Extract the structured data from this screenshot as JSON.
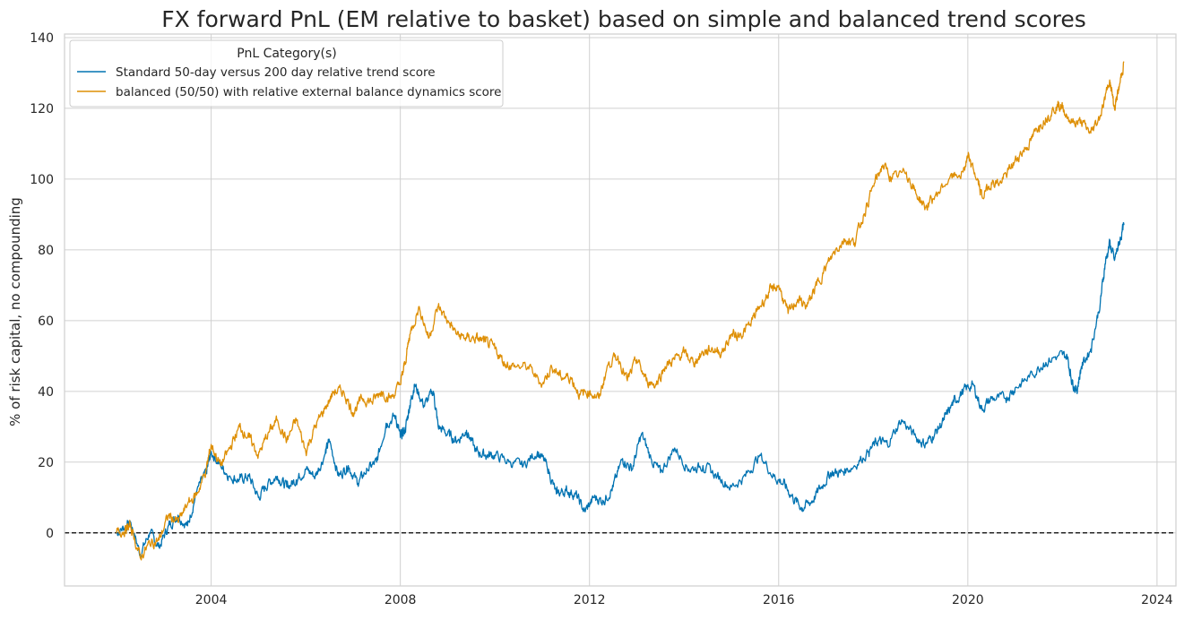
{
  "chart_data": {
    "type": "line",
    "title": "FX forward PnL (EM relative to basket) based on simple and balanced trend scores",
    "xlabel": "",
    "ylabel": "% of risk capital, no compounding",
    "xlim": [
      2000.9,
      2024.4
    ],
    "ylim": [
      -15,
      141
    ],
    "x_ticks": [
      2004,
      2008,
      2012,
      2016,
      2020,
      2024
    ],
    "x_tick_labels": [
      "2004",
      "2008",
      "2012",
      "2016",
      "2020",
      "2024"
    ],
    "y_ticks": [
      0,
      20,
      40,
      60,
      80,
      100,
      120,
      140
    ],
    "y_tick_labels": [
      "0",
      "20",
      "40",
      "60",
      "80",
      "100",
      "120",
      "140"
    ],
    "grid": true,
    "reference_line": {
      "y": 0,
      "style": "dashed",
      "color": "#000000"
    },
    "legend": {
      "title": "PnL Category(s)",
      "placement": "top-left"
    },
    "series": [
      {
        "name": "Standard 50-day versus 200 day relative trend score",
        "color": "#0173b2",
        "points": [
          [
            2002.0,
            0
          ],
          [
            2002.2,
            2
          ],
          [
            2002.3,
            3
          ],
          [
            2002.5,
            -6
          ],
          [
            2002.7,
            0
          ],
          [
            2002.9,
            -4
          ],
          [
            2003.1,
            2
          ],
          [
            2003.3,
            5
          ],
          [
            2003.5,
            2
          ],
          [
            2003.7,
            12
          ],
          [
            2003.9,
            17
          ],
          [
            2004.0,
            23
          ],
          [
            2004.2,
            19
          ],
          [
            2004.4,
            16
          ],
          [
            2004.6,
            15
          ],
          [
            2004.8,
            16
          ],
          [
            2005.0,
            10
          ],
          [
            2005.2,
            14
          ],
          [
            2005.4,
            16
          ],
          [
            2005.6,
            13
          ],
          [
            2005.8,
            15
          ],
          [
            2006.0,
            18
          ],
          [
            2006.2,
            16
          ],
          [
            2006.4,
            22
          ],
          [
            2006.5,
            26
          ],
          [
            2006.7,
            16
          ],
          [
            2006.9,
            19
          ],
          [
            2007.1,
            14
          ],
          [
            2007.3,
            18
          ],
          [
            2007.5,
            20
          ],
          [
            2007.7,
            31
          ],
          [
            2007.9,
            33
          ],
          [
            2008.0,
            27
          ],
          [
            2008.1,
            29
          ],
          [
            2008.2,
            36
          ],
          [
            2008.3,
            42
          ],
          [
            2008.5,
            36
          ],
          [
            2008.7,
            40
          ],
          [
            2008.8,
            30
          ],
          [
            2009.0,
            28
          ],
          [
            2009.2,
            26
          ],
          [
            2009.4,
            29
          ],
          [
            2009.6,
            23
          ],
          [
            2009.8,
            22
          ],
          [
            2010.0,
            22
          ],
          [
            2010.3,
            20
          ],
          [
            2010.6,
            19
          ],
          [
            2010.9,
            23
          ],
          [
            2011.1,
            19
          ],
          [
            2011.3,
            11
          ],
          [
            2011.5,
            12
          ],
          [
            2011.7,
            11
          ],
          [
            2011.9,
            6
          ],
          [
            2012.1,
            10
          ],
          [
            2012.3,
            9
          ],
          [
            2012.5,
            13
          ],
          [
            2012.7,
            21
          ],
          [
            2012.9,
            18
          ],
          [
            2013.1,
            28
          ],
          [
            2013.3,
            21
          ],
          [
            2013.5,
            17
          ],
          [
            2013.8,
            24
          ],
          [
            2014.1,
            18
          ],
          [
            2014.4,
            19
          ],
          [
            2014.7,
            16
          ],
          [
            2015.0,
            13
          ],
          [
            2015.3,
            16
          ],
          [
            2015.6,
            22
          ],
          [
            2015.9,
            16
          ],
          [
            2016.1,
            14
          ],
          [
            2016.3,
            10
          ],
          [
            2016.5,
            7
          ],
          [
            2016.7,
            9
          ],
          [
            2016.9,
            13
          ],
          [
            2017.1,
            17
          ],
          [
            2017.3,
            17
          ],
          [
            2017.6,
            19
          ],
          [
            2017.9,
            23
          ],
          [
            2018.1,
            26
          ],
          [
            2018.3,
            25
          ],
          [
            2018.6,
            32
          ],
          [
            2018.9,
            27
          ],
          [
            2019.1,
            25
          ],
          [
            2019.3,
            28
          ],
          [
            2019.5,
            32
          ],
          [
            2019.7,
            37
          ],
          [
            2019.9,
            40
          ],
          [
            2020.1,
            42
          ],
          [
            2020.3,
            35
          ],
          [
            2020.5,
            38
          ],
          [
            2020.8,
            38
          ],
          [
            2021.0,
            41
          ],
          [
            2021.3,
            44
          ],
          [
            2021.6,
            48
          ],
          [
            2021.9,
            50
          ],
          [
            2022.1,
            50
          ],
          [
            2022.2,
            43
          ],
          [
            2022.3,
            40
          ],
          [
            2022.4,
            47
          ],
          [
            2022.6,
            52
          ],
          [
            2022.8,
            65
          ],
          [
            2022.9,
            76
          ],
          [
            2023.0,
            82
          ],
          [
            2023.1,
            77
          ],
          [
            2023.2,
            82
          ],
          [
            2023.3,
            87
          ]
        ]
      },
      {
        "name": "balanced (50/50) with relative external balance dynamics score",
        "color": "#de8f05",
        "points": [
          [
            2002.0,
            0
          ],
          [
            2002.2,
            1
          ],
          [
            2002.3,
            2
          ],
          [
            2002.5,
            -7
          ],
          [
            2002.7,
            -3
          ],
          [
            2002.9,
            -2
          ],
          [
            2003.1,
            5
          ],
          [
            2003.3,
            3
          ],
          [
            2003.5,
            8
          ],
          [
            2003.7,
            11
          ],
          [
            2003.9,
            18
          ],
          [
            2004.0,
            25
          ],
          [
            2004.2,
            19
          ],
          [
            2004.4,
            24
          ],
          [
            2004.6,
            30
          ],
          [
            2004.8,
            27
          ],
          [
            2005.0,
            22
          ],
          [
            2005.2,
            28
          ],
          [
            2005.4,
            32
          ],
          [
            2005.6,
            26
          ],
          [
            2005.8,
            32
          ],
          [
            2006.0,
            23
          ],
          [
            2006.2,
            30
          ],
          [
            2006.4,
            35
          ],
          [
            2006.6,
            40
          ],
          [
            2006.8,
            40
          ],
          [
            2007.0,
            34
          ],
          [
            2007.2,
            38
          ],
          [
            2007.4,
            37
          ],
          [
            2007.6,
            40
          ],
          [
            2007.8,
            38
          ],
          [
            2008.0,
            42
          ],
          [
            2008.1,
            48
          ],
          [
            2008.2,
            56
          ],
          [
            2008.4,
            64
          ],
          [
            2008.6,
            55
          ],
          [
            2008.8,
            64
          ],
          [
            2009.0,
            60
          ],
          [
            2009.2,
            56
          ],
          [
            2009.4,
            55
          ],
          [
            2009.6,
            55
          ],
          [
            2009.8,
            54
          ],
          [
            2010.0,
            52
          ],
          [
            2010.2,
            48
          ],
          [
            2010.4,
            47
          ],
          [
            2010.7,
            47
          ],
          [
            2011.0,
            42
          ],
          [
            2011.2,
            47
          ],
          [
            2011.4,
            44
          ],
          [
            2011.6,
            44
          ],
          [
            2011.8,
            39
          ],
          [
            2012.0,
            40
          ],
          [
            2012.2,
            38
          ],
          [
            2012.4,
            48
          ],
          [
            2012.6,
            50
          ],
          [
            2012.8,
            43
          ],
          [
            2013.0,
            49
          ],
          [
            2013.2,
            43
          ],
          [
            2013.4,
            42
          ],
          [
            2013.6,
            47
          ],
          [
            2013.8,
            49
          ],
          [
            2014.0,
            51
          ],
          [
            2014.2,
            48
          ],
          [
            2014.4,
            51
          ],
          [
            2014.6,
            52
          ],
          [
            2014.8,
            51
          ],
          [
            2015.0,
            56
          ],
          [
            2015.2,
            56
          ],
          [
            2015.4,
            59
          ],
          [
            2015.6,
            64
          ],
          [
            2015.8,
            68
          ],
          [
            2016.0,
            70
          ],
          [
            2016.2,
            62
          ],
          [
            2016.4,
            66
          ],
          [
            2016.6,
            64
          ],
          [
            2016.8,
            70
          ],
          [
            2017.0,
            75
          ],
          [
            2017.2,
            80
          ],
          [
            2017.4,
            83
          ],
          [
            2017.6,
            82
          ],
          [
            2017.8,
            90
          ],
          [
            2018.0,
            98
          ],
          [
            2018.2,
            104
          ],
          [
            2018.4,
            100
          ],
          [
            2018.7,
            102
          ],
          [
            2018.9,
            96
          ],
          [
            2019.1,
            92
          ],
          [
            2019.3,
            95
          ],
          [
            2019.6,
            100
          ],
          [
            2019.9,
            102
          ],
          [
            2020.0,
            106
          ],
          [
            2020.2,
            100
          ],
          [
            2020.3,
            95
          ],
          [
            2020.5,
            99
          ],
          [
            2020.7,
            99
          ],
          [
            2020.9,
            103
          ],
          [
            2021.1,
            107
          ],
          [
            2021.3,
            110
          ],
          [
            2021.5,
            115
          ],
          [
            2021.7,
            118
          ],
          [
            2021.9,
            121
          ],
          [
            2022.0,
            120
          ],
          [
            2022.2,
            116
          ],
          [
            2022.4,
            116
          ],
          [
            2022.6,
            113
          ],
          [
            2022.8,
            118
          ],
          [
            2023.0,
            128
          ],
          [
            2023.1,
            120
          ],
          [
            2023.2,
            126
          ],
          [
            2023.3,
            133
          ]
        ]
      }
    ]
  }
}
